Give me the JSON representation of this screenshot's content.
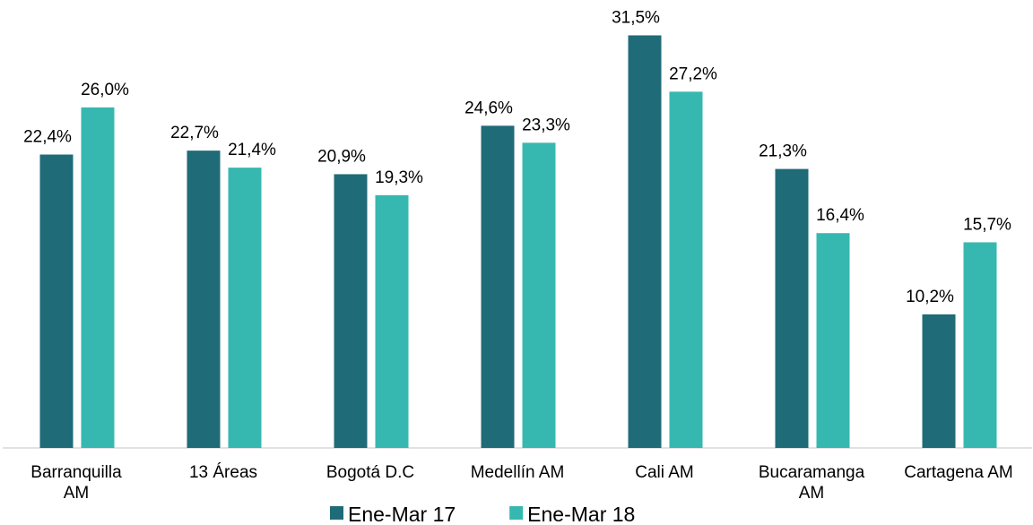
{
  "chart_data": {
    "type": "bar",
    "categories": [
      "Barranquilla\nAM",
      "13 Áreas",
      "Bogotá D.C",
      "Medellín AM",
      "Cali AM",
      "Bucaramanga\nAM",
      "Cartagena AM"
    ],
    "series": [
      {
        "name": "Ene-Mar 17",
        "color": "#1f6b78",
        "values": [
          22.4,
          22.7,
          20.9,
          24.6,
          31.5,
          21.3,
          10.2
        ],
        "value_labels": [
          "22,4%",
          "22,7%",
          "20,9%",
          "24,6%",
          "31,5%",
          "21,3%",
          "10,2%"
        ]
      },
      {
        "name": "Ene-Mar 18",
        "color": "#36b8b0",
        "values": [
          26.0,
          21.4,
          19.3,
          23.3,
          27.2,
          16.4,
          15.7
        ],
        "value_labels": [
          "26,0%",
          "21,4%",
          "19,3%",
          "23,3%",
          "27,2%",
          "16,4%",
          "15,7%"
        ]
      }
    ],
    "ylim": [
      0,
      34.2
    ],
    "legend": "bottom"
  }
}
